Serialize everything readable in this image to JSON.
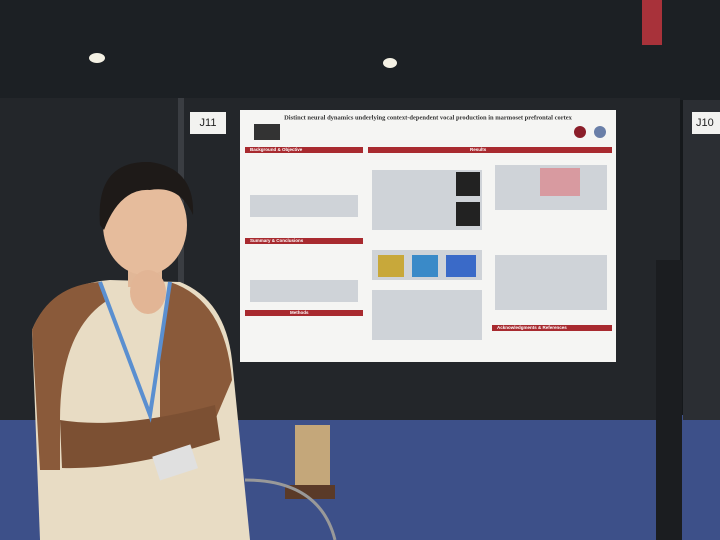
{
  "booth_labels": [
    "J11",
    "J10"
  ],
  "poster": {
    "title": "Distinct neural dynamics underlying context-dependent vocal production in marmoset prefrontal cortex",
    "sections": [
      "Background & Objective",
      "Results",
      "Summary & Conclusions",
      "Methods",
      "Acknowledgments & References"
    ]
  }
}
